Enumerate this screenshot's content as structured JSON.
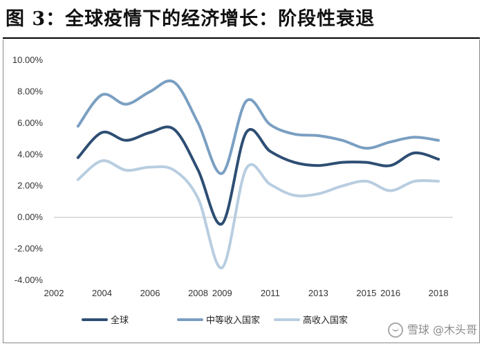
{
  "figure": {
    "title": "图 3：全球疫情下的经济增长：阶段性衰退",
    "watermark": "雪球 @木头哥"
  },
  "chart_data": {
    "type": "line",
    "x": [
      2003,
      2004,
      2005,
      2006,
      2007,
      2008,
      2009,
      2010,
      2011,
      2012,
      2013,
      2014,
      2015,
      2016,
      2017,
      2018
    ],
    "x_tick_values": [
      2002,
      2004,
      2006,
      2008,
      2009,
      2011,
      2013,
      2015,
      2016,
      2018
    ],
    "x_tick_labels": [
      "2002",
      "2004",
      "2006",
      "2008",
      "2009",
      "2011",
      "2013",
      "2015",
      "2016",
      "2018"
    ],
    "ylim": [
      -4.0,
      10.0
    ],
    "y_ticks": [
      -4,
      -2,
      0,
      2,
      4,
      6,
      8,
      10
    ],
    "y_tick_labels": [
      "-4.00%",
      "-2.00%",
      "0.00%",
      "2.00%",
      "4.00%",
      "6.00%",
      "8.00%",
      "10.00%"
    ],
    "grid": false,
    "legend_position": "bottom-center",
    "series": [
      {
        "name": "全球",
        "color": "#2e4e73",
        "values": [
          3.8,
          5.4,
          4.9,
          5.4,
          5.6,
          3.0,
          -0.4,
          5.4,
          4.2,
          3.5,
          3.3,
          3.5,
          3.5,
          3.3,
          4.1,
          3.7
        ]
      },
      {
        "name": "中等收入国家",
        "color": "#7a9fc2",
        "values": [
          5.8,
          7.8,
          7.2,
          8.0,
          8.6,
          6.0,
          2.8,
          7.4,
          5.9,
          5.3,
          5.2,
          4.9,
          4.4,
          4.8,
          5.1,
          4.9
        ]
      },
      {
        "name": "高收入国家",
        "color": "#b8cde0",
        "values": [
          2.4,
          3.6,
          3.0,
          3.2,
          3.0,
          1.2,
          -3.2,
          3.1,
          2.1,
          1.4,
          1.5,
          2.0,
          2.3,
          1.7,
          2.3,
          2.3
        ]
      }
    ]
  }
}
